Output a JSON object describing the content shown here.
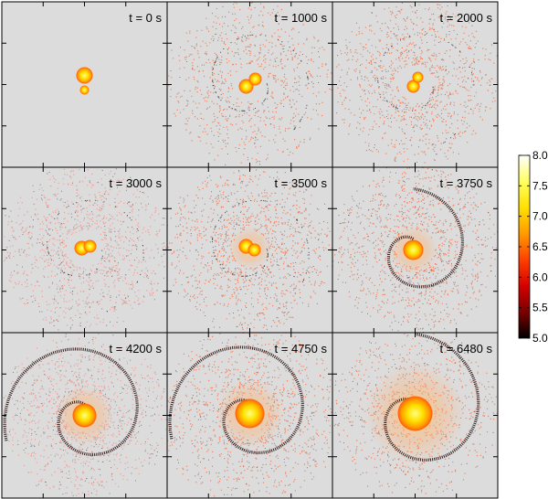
{
  "panels": [
    {
      "label": "t = 0 s"
    },
    {
      "label": "t = 1000 s"
    },
    {
      "label": "t = 2000 s"
    },
    {
      "label": "t = 3000 s"
    },
    {
      "label": "t = 3500 s"
    },
    {
      "label": "t = 3750 s"
    },
    {
      "label": "t = 4200 s"
    },
    {
      "label": "t = 4750 s"
    },
    {
      "label": "t = 6480 s"
    }
  ],
  "colorbar": {
    "ticks": [
      "8.0",
      "7.5",
      "7.0",
      "6.5",
      "6.0",
      "5.5",
      "5.0"
    ],
    "colors": [
      "#000000",
      "#7a0000",
      "#d40000",
      "#ff4000",
      "#ff9a00",
      "#ffe000",
      "#ffff60",
      "#ffffff"
    ]
  },
  "colors": {
    "panel_background": "#dcdcdc",
    "frame": "#000000"
  }
}
